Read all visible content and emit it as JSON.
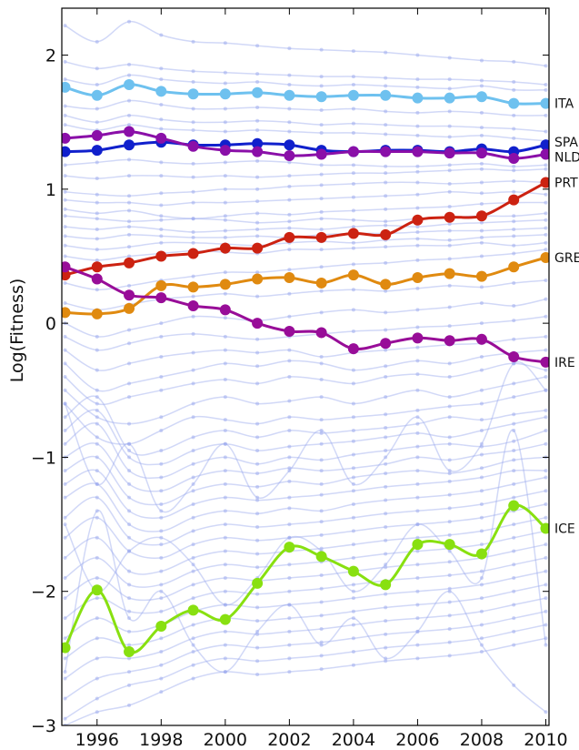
{
  "chart_data": {
    "type": "line",
    "title": "",
    "xlabel": "",
    "ylabel": "Log(Fitness)",
    "xlim": [
      1994.9,
      2010.1
    ],
    "ylim": [
      -3,
      2.35
    ],
    "x": [
      1995,
      1996,
      1997,
      1998,
      1999,
      2000,
      2001,
      2002,
      2003,
      2004,
      2005,
      2006,
      2007,
      2008,
      2009,
      2010
    ],
    "x_ticks": [
      1996,
      1998,
      2000,
      2002,
      2004,
      2006,
      2008,
      2010
    ],
    "x_tick_labels": [
      "1996",
      "1998",
      "2000",
      "2002",
      "2004",
      "2006",
      "2008",
      "2010"
    ],
    "y_ticks": [
      -3,
      -2,
      -1,
      0,
      1,
      2
    ],
    "y_tick_labels": [
      "−3",
      "−2",
      "−1",
      "0",
      "1",
      "2"
    ],
    "grid": false,
    "highlighted_series": [
      {
        "name": "ITA",
        "color": "#6ec1ef",
        "values": [
          1.76,
          1.7,
          1.78,
          1.73,
          1.71,
          1.71,
          1.72,
          1.7,
          1.69,
          1.7,
          1.7,
          1.68,
          1.68,
          1.69,
          1.64,
          1.64
        ]
      },
      {
        "name": "SPA",
        "color": "#1020cc",
        "values": [
          1.28,
          1.29,
          1.33,
          1.35,
          1.33,
          1.33,
          1.34,
          1.33,
          1.29,
          1.28,
          1.29,
          1.29,
          1.28,
          1.3,
          1.28,
          1.33
        ]
      },
      {
        "name": "NLD",
        "color": "#8a0fa8",
        "values": [
          1.38,
          1.4,
          1.43,
          1.38,
          1.32,
          1.29,
          1.28,
          1.25,
          1.26,
          1.28,
          1.28,
          1.28,
          1.27,
          1.27,
          1.23,
          1.26
        ]
      },
      {
        "name": "PRT",
        "color": "#cc2211",
        "values": [
          0.36,
          0.42,
          0.45,
          0.5,
          0.52,
          0.56,
          0.56,
          0.64,
          0.64,
          0.67,
          0.66,
          0.77,
          0.79,
          0.8,
          0.92,
          1.05
        ]
      },
      {
        "name": "GRE",
        "color": "#e08a10",
        "values": [
          0.08,
          0.07,
          0.11,
          0.28,
          0.27,
          0.29,
          0.33,
          0.34,
          0.3,
          0.36,
          0.29,
          0.34,
          0.37,
          0.35,
          0.42,
          0.49
        ]
      },
      {
        "name": "IRE",
        "color": "#980d98",
        "values": [
          0.42,
          0.33,
          0.21,
          0.19,
          0.13,
          0.1,
          0.0,
          -0.06,
          -0.07,
          -0.19,
          -0.15,
          -0.11,
          -0.13,
          -0.12,
          -0.25,
          -0.29
        ]
      },
      {
        "name": "ICE",
        "color": "#88e010",
        "values": [
          -2.42,
          -1.99,
          -2.45,
          -2.26,
          -2.14,
          -2.21,
          -1.94,
          -1.67,
          -1.74,
          -1.85,
          -1.95,
          -1.65,
          -1.65,
          -1.72,
          -1.36,
          -1.53
        ]
      }
    ],
    "background_series": {
      "color": "#9aa8ee",
      "values": [
        [
          2.22,
          2.1,
          2.25,
          2.15,
          2.1,
          2.09,
          2.07,
          2.05,
          2.04,
          2.03,
          2.02,
          2.0,
          1.98,
          1.96,
          1.95,
          1.92
        ],
        [
          1.95,
          1.9,
          1.93,
          1.9,
          1.88,
          1.87,
          1.86,
          1.85,
          1.84,
          1.84,
          1.83,
          1.82,
          1.82,
          1.81,
          1.8,
          1.78
        ],
        [
          1.82,
          1.78,
          1.85,
          1.82,
          1.8,
          1.79,
          1.8,
          1.78,
          1.77,
          1.78,
          1.77,
          1.76,
          1.75,
          1.77,
          1.74,
          1.74
        ],
        [
          1.62,
          1.6,
          1.66,
          1.63,
          1.6,
          1.6,
          1.61,
          1.6,
          1.59,
          1.6,
          1.58,
          1.57,
          1.58,
          1.57,
          1.55,
          1.55
        ],
        [
          1.55,
          1.5,
          1.55,
          1.52,
          1.5,
          1.5,
          1.51,
          1.5,
          1.48,
          1.49,
          1.48,
          1.47,
          1.47,
          1.46,
          1.45,
          1.43
        ],
        [
          1.48,
          1.44,
          1.48,
          1.45,
          1.44,
          1.43,
          1.44,
          1.43,
          1.42,
          1.42,
          1.41,
          1.4,
          1.39,
          1.4,
          1.38,
          1.36
        ],
        [
          1.18,
          1.2,
          1.22,
          1.2,
          1.19,
          1.2,
          1.21,
          1.2,
          1.18,
          1.18,
          1.17,
          1.17,
          1.18,
          1.19,
          1.17,
          1.18
        ],
        [
          1.1,
          1.08,
          1.1,
          1.1,
          1.09,
          1.1,
          1.09,
          1.1,
          1.11,
          1.12,
          1.12,
          1.13,
          1.14,
          1.15,
          1.14,
          1.15
        ],
        [
          0.98,
          0.96,
          0.95,
          0.97,
          0.98,
          1.0,
          1.0,
          1.02,
          1.03,
          1.04,
          1.05,
          1.05,
          1.04,
          1.05,
          1.06,
          1.05
        ],
        [
          0.92,
          0.9,
          0.9,
          0.88,
          0.9,
          0.9,
          0.91,
          0.92,
          0.93,
          0.94,
          0.95,
          0.96,
          0.98,
          0.97,
          0.98,
          0.96
        ],
        [
          0.85,
          0.82,
          0.84,
          0.8,
          0.78,
          0.8,
          0.82,
          0.81,
          0.83,
          0.84,
          0.85,
          0.86,
          0.87,
          0.89,
          0.9,
          0.9
        ],
        [
          0.8,
          0.78,
          0.76,
          0.77,
          0.78,
          0.77,
          0.75,
          0.76,
          0.78,
          0.77,
          0.76,
          0.78,
          0.79,
          0.8,
          0.8,
          0.82
        ],
        [
          0.72,
          0.7,
          0.72,
          0.7,
          0.68,
          0.69,
          0.7,
          0.71,
          0.7,
          0.72,
          0.73,
          0.72,
          0.74,
          0.75,
          0.76,
          0.77
        ],
        [
          0.65,
          0.63,
          0.66,
          0.65,
          0.64,
          0.64,
          0.65,
          0.64,
          0.66,
          0.67,
          0.67,
          0.68,
          0.69,
          0.69,
          0.7,
          0.71
        ],
        [
          0.58,
          0.55,
          0.57,
          0.6,
          0.6,
          0.59,
          0.58,
          0.6,
          0.61,
          0.6,
          0.62,
          0.63,
          0.62,
          0.64,
          0.65,
          0.66
        ],
        [
          0.5,
          0.47,
          0.5,
          0.52,
          0.54,
          0.53,
          0.52,
          0.55,
          0.55,
          0.56,
          0.57,
          0.58,
          0.58,
          0.6,
          0.58,
          0.6
        ],
        [
          0.3,
          0.25,
          0.28,
          0.32,
          0.35,
          0.38,
          0.38,
          0.4,
          0.42,
          0.44,
          0.45,
          0.47,
          0.48,
          0.5,
          0.52,
          0.55
        ],
        [
          0.15,
          0.1,
          0.14,
          0.18,
          0.2,
          0.22,
          0.2,
          0.22,
          0.24,
          0.25,
          0.24,
          0.26,
          0.28,
          0.27,
          0.3,
          0.32
        ],
        [
          0.0,
          -0.1,
          -0.05,
          0.0,
          0.05,
          0.04,
          0.02,
          0.05,
          0.08,
          0.1,
          0.08,
          0.1,
          0.12,
          0.15,
          0.13,
          0.18
        ],
        [
          -0.1,
          -0.2,
          -0.15,
          -0.1,
          -0.08,
          -0.1,
          -0.12,
          -0.1,
          -0.08,
          -0.06,
          -0.05,
          -0.03,
          -0.02,
          0.0,
          0.02,
          0.05
        ],
        [
          -0.2,
          -0.35,
          -0.3,
          -0.25,
          -0.22,
          -0.2,
          -0.22,
          -0.2,
          -0.25,
          -0.22,
          -0.2,
          -0.18,
          -0.16,
          -0.15,
          -0.12,
          -0.1
        ],
        [
          -0.3,
          -0.5,
          -0.45,
          -0.4,
          -0.35,
          -0.3,
          -0.32,
          -0.28,
          -0.3,
          -0.35,
          -0.32,
          -0.28,
          -0.3,
          -0.25,
          -0.22,
          -0.2
        ],
        [
          -0.4,
          -0.6,
          -0.55,
          -0.5,
          -0.45,
          -0.42,
          -0.45,
          -0.4,
          -0.42,
          -0.45,
          -0.4,
          -0.38,
          -0.4,
          -0.35,
          -0.3,
          -0.35
        ],
        [
          -0.5,
          -0.7,
          -0.75,
          -0.7,
          -0.6,
          -0.55,
          -0.6,
          -0.58,
          -0.55,
          -0.6,
          -0.55,
          -0.5,
          -0.55,
          -0.5,
          -0.45,
          -0.4
        ],
        [
          -0.6,
          -0.85,
          -0.9,
          -0.8,
          -0.7,
          -0.72,
          -0.75,
          -0.7,
          -0.72,
          -0.7,
          -0.68,
          -0.65,
          -0.62,
          -0.6,
          -0.55,
          -0.5
        ],
        [
          -0.7,
          -0.55,
          -0.95,
          -0.95,
          -0.85,
          -0.8,
          -0.85,
          -0.8,
          -0.82,
          -0.8,
          -0.78,
          -0.75,
          -0.7,
          -0.72,
          -0.68,
          -0.65
        ],
        [
          -0.8,
          -0.65,
          -1.0,
          -1.05,
          -0.95,
          -0.9,
          -0.95,
          -0.92,
          -0.9,
          -0.88,
          -0.85,
          -0.82,
          -0.85,
          -0.8,
          -0.75,
          -0.7
        ],
        [
          -0.9,
          -0.75,
          -1.1,
          -1.15,
          -1.05,
          -1.0,
          -1.05,
          -1.0,
          -1.02,
          -0.98,
          -0.95,
          -0.92,
          -0.9,
          -0.92,
          -0.88,
          -0.8
        ],
        [
          -1.0,
          -0.9,
          -1.2,
          -1.25,
          -1.15,
          -1.1,
          -1.12,
          -1.08,
          -1.1,
          -1.08,
          -1.05,
          -1.0,
          -1.02,
          -0.98,
          -0.95,
          -0.9
        ],
        [
          -1.1,
          -1.0,
          -1.3,
          -1.35,
          -1.25,
          -1.2,
          -1.22,
          -1.18,
          -1.2,
          -1.15,
          -1.12,
          -1.1,
          -1.12,
          -1.08,
          -1.02,
          -1.0
        ],
        [
          -1.2,
          -1.1,
          -1.4,
          -1.45,
          -1.35,
          -1.3,
          -1.32,
          -1.3,
          -1.28,
          -1.25,
          -1.22,
          -1.2,
          -1.18,
          -1.15,
          -1.1,
          -1.1
        ],
        [
          -1.3,
          -1.2,
          -1.5,
          -1.55,
          -1.45,
          -1.4,
          -1.42,
          -1.38,
          -1.4,
          -1.35,
          -1.32,
          -1.3,
          -1.28,
          -1.25,
          -1.2,
          -1.15
        ],
        [
          -1.45,
          -1.3,
          -1.6,
          -1.65,
          -1.55,
          -1.5,
          -1.52,
          -1.5,
          -1.48,
          -1.45,
          -1.42,
          -1.4,
          -1.38,
          -1.35,
          -1.3,
          -1.25
        ],
        [
          -1.6,
          -1.45,
          -1.7,
          -1.75,
          -1.65,
          -1.6,
          -1.62,
          -1.6,
          -1.58,
          -1.55,
          -1.52,
          -1.5,
          -1.48,
          -1.45,
          -1.4,
          -1.35
        ],
        [
          -1.75,
          -1.6,
          -1.85,
          -1.85,
          -1.75,
          -1.7,
          -1.72,
          -1.7,
          -1.68,
          -1.65,
          -1.62,
          -1.6,
          -1.58,
          -1.55,
          -1.5,
          -1.45
        ],
        [
          -1.9,
          -1.75,
          -1.95,
          -1.95,
          -1.85,
          -1.8,
          -1.82,
          -1.8,
          -1.78,
          -1.75,
          -1.72,
          -1.7,
          -1.68,
          -1.65,
          -1.6,
          -1.55
        ],
        [
          -2.05,
          -1.9,
          -2.05,
          -2.05,
          -1.95,
          -1.9,
          -1.92,
          -1.9,
          -1.88,
          -1.85,
          -1.82,
          -1.8,
          -1.78,
          -1.75,
          -1.7,
          -1.65
        ],
        [
          -2.2,
          -2.05,
          -2.15,
          -2.15,
          -2.05,
          -2.0,
          -2.02,
          -2.0,
          -1.98,
          -1.95,
          -1.92,
          -1.9,
          -1.88,
          -1.85,
          -1.8,
          -1.75
        ],
        [
          -2.35,
          -2.2,
          -2.3,
          -2.25,
          -2.15,
          -2.1,
          -2.12,
          -2.1,
          -2.08,
          -2.05,
          -2.02,
          -2.0,
          -1.98,
          -1.95,
          -1.9,
          -1.85
        ],
        [
          -2.5,
          -2.35,
          -2.4,
          -2.35,
          -2.25,
          -2.2,
          -2.22,
          -2.2,
          -2.18,
          -2.15,
          -2.12,
          -2.1,
          -2.08,
          -2.05,
          -2.0,
          -1.95
        ],
        [
          -2.65,
          -2.5,
          -2.5,
          -2.45,
          -2.35,
          -2.3,
          -2.32,
          -2.3,
          -2.28,
          -2.25,
          -2.22,
          -2.2,
          -2.18,
          -2.15,
          -2.1,
          -2.05
        ],
        [
          -2.8,
          -2.65,
          -2.6,
          -2.55,
          -2.45,
          -2.4,
          -2.42,
          -2.4,
          -2.38,
          -2.35,
          -2.32,
          -2.3,
          -2.28,
          -2.25,
          -2.2,
          -2.15
        ],
        [
          -2.95,
          -2.8,
          -2.7,
          -2.65,
          -2.55,
          -2.5,
          -2.52,
          -2.5,
          -2.48,
          -2.45,
          -2.42,
          -2.4,
          -2.38,
          -2.35,
          -2.3,
          -2.25
        ],
        [
          -3.0,
          -2.9,
          -2.85,
          -2.75,
          -2.65,
          -2.6,
          -2.62,
          -2.6,
          -2.58,
          -2.55,
          -2.52,
          -2.5,
          -2.48,
          -2.45,
          -2.4,
          -2.35
        ],
        [
          -1.5,
          -2.0,
          -1.7,
          -1.6,
          -1.8,
          -2.1,
          -1.9,
          -1.6,
          -1.7,
          -2.0,
          -1.8,
          -1.5,
          -1.7,
          -1.9,
          -0.8,
          -2.4
        ],
        [
          -0.6,
          -1.2,
          -0.9,
          -1.4,
          -1.2,
          -0.9,
          -1.3,
          -1.1,
          -0.8,
          -1.2,
          -1.0,
          -0.7,
          -1.1,
          -0.9,
          -0.3,
          -0.5
        ],
        [
          -2.6,
          -1.4,
          -2.2,
          -2.0,
          -2.4,
          -2.6,
          -2.3,
          -2.1,
          -2.4,
          -2.2,
          -2.5,
          -2.3,
          -2.0,
          -2.4,
          -2.7,
          -2.9
        ]
      ]
    }
  }
}
